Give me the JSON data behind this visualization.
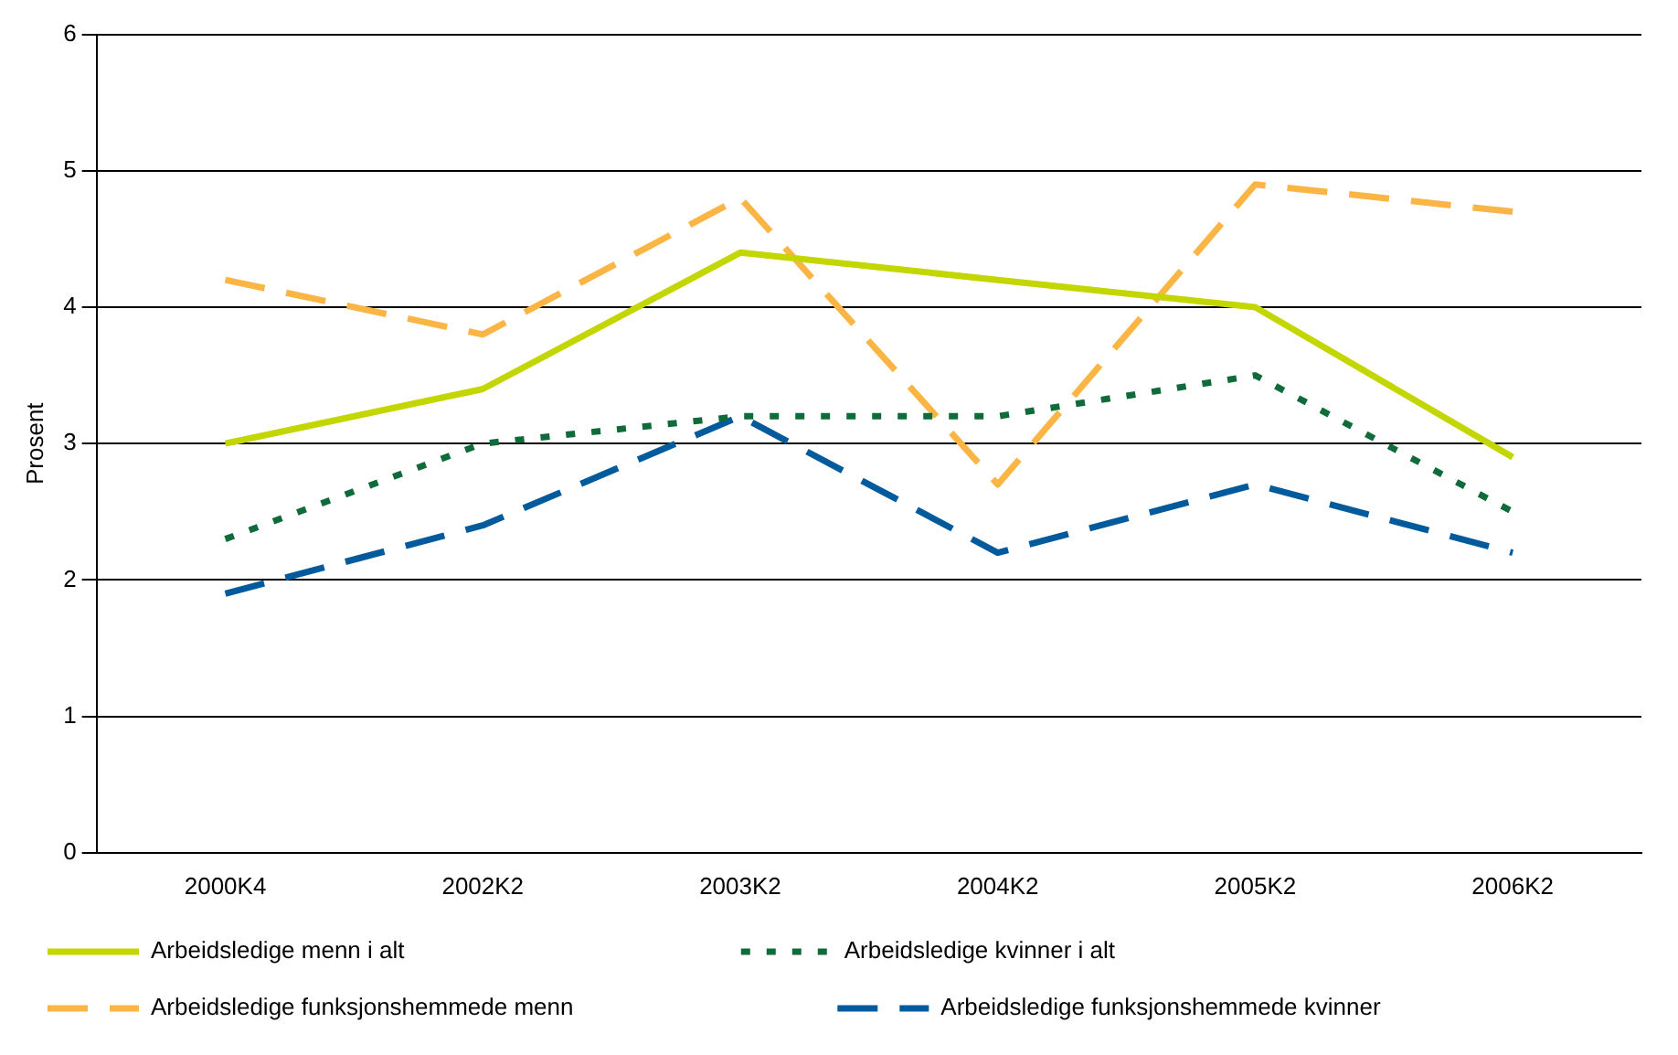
{
  "chart_data": {
    "type": "line",
    "ylabel": "Prosent",
    "categories": [
      "2000K4",
      "2002K2",
      "2003K2",
      "2004K2",
      "2005K2",
      "2006K2"
    ],
    "series": [
      {
        "name": "Arbeidsledige menn i alt",
        "color": "#c3d600",
        "line_style": "solid",
        "values": [
          3.0,
          3.4,
          4.4,
          4.2,
          4.0,
          2.9
        ]
      },
      {
        "name": "Arbeidsledige kvinner i alt",
        "color": "#0f6b3a",
        "line_style": "dotted",
        "values": [
          2.3,
          3.0,
          3.2,
          3.2,
          3.5,
          2.5
        ]
      },
      {
        "name": "Arbeidsledige funksjonshemmede menn",
        "color": "#fbb545",
        "line_style": "dashed",
        "values": [
          4.2,
          3.8,
          4.8,
          2.7,
          4.9,
          4.7
        ]
      },
      {
        "name": "Arbeidsledige funksjonshemmede kvinner",
        "color": "#005a9c",
        "line_style": "dashed",
        "values": [
          1.9,
          2.4,
          3.2,
          2.2,
          2.7,
          2.2
        ]
      }
    ],
    "ylim": [
      0,
      6
    ],
    "yticks": [
      0,
      1,
      2,
      3,
      4,
      5,
      6
    ],
    "grid": "y",
    "legend": "bottom",
    "marker": "none"
  }
}
